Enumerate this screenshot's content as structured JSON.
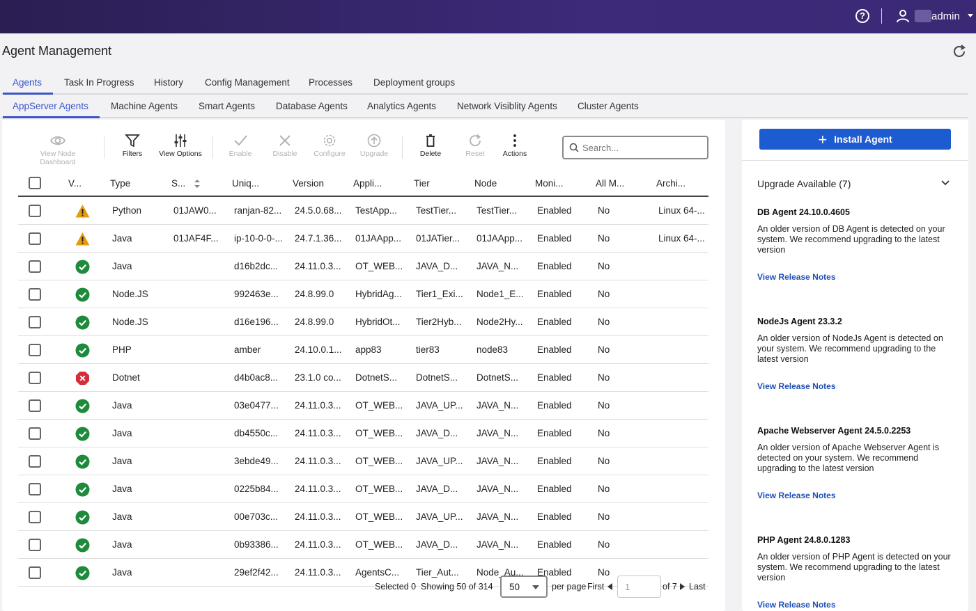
{
  "header": {
    "user_name": "admin",
    "help_icon": "?"
  },
  "page": {
    "title": "Agent Management"
  },
  "tabs": [
    "Agents",
    "Task In Progress",
    "History",
    "Config Management",
    "Processes",
    "Deployment groups"
  ],
  "subtabs": [
    "AppServer Agents",
    "Machine Agents",
    "Smart Agents",
    "Database Agents",
    "Analytics Agents",
    "Network Visiblity Agents",
    "Cluster Agents"
  ],
  "toolbar": {
    "view_node_dashboard": "View Node Dashboard",
    "filters": "Filters",
    "view_options": "View Options",
    "enable": "Enable",
    "disable": "Disable",
    "configure": "Configure",
    "upgrade": "Upgrade",
    "delete": "Delete",
    "reset": "Reset",
    "actions": "Actions"
  },
  "search": {
    "placeholder": "Search..."
  },
  "table": {
    "columns": [
      "V...",
      "Type",
      "S...",
      "Uniq...",
      "Version",
      "Appli...",
      "Tier",
      "Node",
      "Moni...",
      "All M...",
      "Archi..."
    ],
    "rows": [
      {
        "status": "warning",
        "type": "Python",
        "s": "01JAW0...",
        "uniq": "ranjan-82...",
        "version": "24.5.0.68...",
        "app": "TestApp...",
        "tier": "TestTier...",
        "node": "TestTier...",
        "moni": "Enabled",
        "allm": "No",
        "arch": "Linux 64-..."
      },
      {
        "status": "warning",
        "type": "Java",
        "s": "01JAF4F...",
        "uniq": "ip-10-0-0-...",
        "version": "24.7.1.36...",
        "app": "01JAApp...",
        "tier": "01JATier...",
        "node": "01JAApp...",
        "moni": "Enabled",
        "allm": "No",
        "arch": "Linux 64-..."
      },
      {
        "status": "ok",
        "type": "Java",
        "s": "",
        "uniq": "d16b2dc...",
        "version": "24.11.0.3...",
        "app": "OT_WEB...",
        "tier": "JAVA_D...",
        "node": "JAVA_N...",
        "moni": "Enabled",
        "allm": "No",
        "arch": ""
      },
      {
        "status": "ok",
        "type": "Node.JS",
        "s": "",
        "uniq": "992463e...",
        "version": "24.8.99.0",
        "app": "HybridAg...",
        "tier": "Tier1_Exi...",
        "node": "Node1_E...",
        "moni": "Enabled",
        "allm": "No",
        "arch": ""
      },
      {
        "status": "ok",
        "type": "Node.JS",
        "s": "",
        "uniq": "d16e196...",
        "version": "24.8.99.0",
        "app": "HybridOt...",
        "tier": "Tier2Hyb...",
        "node": "Node2Hy...",
        "moni": "Enabled",
        "allm": "No",
        "arch": ""
      },
      {
        "status": "ok",
        "type": "PHP",
        "s": "",
        "uniq": "amber",
        "version": "24.10.0.1...",
        "app": "app83",
        "tier": "tier83",
        "node": "node83",
        "moni": "Enabled",
        "allm": "No",
        "arch": ""
      },
      {
        "status": "error",
        "type": "Dotnet",
        "s": "",
        "uniq": "d4b0ac8...",
        "version": "23.1.0 co...",
        "app": "DotnetS...",
        "tier": "DotnetS...",
        "node": "DotnetS...",
        "moni": "Enabled",
        "allm": "No",
        "arch": ""
      },
      {
        "status": "ok",
        "type": "Java",
        "s": "",
        "uniq": "03e0477...",
        "version": "24.11.0.3...",
        "app": "OT_WEB...",
        "tier": "JAVA_UP...",
        "node": "JAVA_N...",
        "moni": "Enabled",
        "allm": "No",
        "arch": ""
      },
      {
        "status": "ok",
        "type": "Java",
        "s": "",
        "uniq": "db4550c...",
        "version": "24.11.0.3...",
        "app": "OT_WEB...",
        "tier": "JAVA_D...",
        "node": "JAVA_N...",
        "moni": "Enabled",
        "allm": "No",
        "arch": ""
      },
      {
        "status": "ok",
        "type": "Java",
        "s": "",
        "uniq": "3ebde49...",
        "version": "24.11.0.3...",
        "app": "OT_WEB...",
        "tier": "JAVA_UP...",
        "node": "JAVA_N...",
        "moni": "Enabled",
        "allm": "No",
        "arch": ""
      },
      {
        "status": "ok",
        "type": "Java",
        "s": "",
        "uniq": "0225b84...",
        "version": "24.11.0.3...",
        "app": "OT_WEB...",
        "tier": "JAVA_D...",
        "node": "JAVA_N...",
        "moni": "Enabled",
        "allm": "No",
        "arch": ""
      },
      {
        "status": "ok",
        "type": "Java",
        "s": "",
        "uniq": "00e703c...",
        "version": "24.11.0.3...",
        "app": "OT_WEB...",
        "tier": "JAVA_UP...",
        "node": "JAVA_N...",
        "moni": "Enabled",
        "allm": "No",
        "arch": ""
      },
      {
        "status": "ok",
        "type": "Java",
        "s": "",
        "uniq": "0b93386...",
        "version": "24.11.0.3...",
        "app": "OT_WEB...",
        "tier": "JAVA_D...",
        "node": "JAVA_N...",
        "moni": "Enabled",
        "allm": "No",
        "arch": ""
      },
      {
        "status": "ok",
        "type": "Java",
        "s": "",
        "uniq": "29ef2f42...",
        "version": "24.11.0.3...",
        "app": "AgentsC...",
        "tier": "Tier_Aut...",
        "node": "Node_Au...",
        "moni": "Enabled",
        "allm": "No",
        "arch": ""
      }
    ]
  },
  "footer": {
    "selected": "Selected 0",
    "showing": "Showing 50 of 314",
    "per_page_value": "50",
    "per_page_label": "per page",
    "first": "First",
    "page_input": "1",
    "of_pages": "of 7",
    "last": "Last"
  },
  "side": {
    "install_label": "Install Agent",
    "upgrade_title": "Upgrade Available (7)",
    "items": [
      {
        "name": "DB Agent 24.10.0.4605",
        "desc": "An older version of DB Agent is detected on your system. We recommend upgrading to the latest version",
        "link": "View Release Notes"
      },
      {
        "name": "NodeJs Agent 23.3.2",
        "desc": "An older version of NodeJs Agent is detected on your system. We recommend upgrading to the latest version",
        "link": "View Release Notes"
      },
      {
        "name": "Apache Webserver Agent 24.5.0.2253",
        "desc": "An older version of Apache Webserver Agent is detected on your system. We recommend upgrading to the latest version",
        "link": "View Release Notes"
      },
      {
        "name": "PHP Agent 24.8.0.1283",
        "desc": "An older version of PHP Agent is detected on your system. We recommend upgrading to the latest version",
        "link": "View Release Notes"
      }
    ]
  },
  "colors": {
    "brand_header": "#3d2a79",
    "accent": "#3b55c8",
    "install_button": "#1d5bd1",
    "ok": "#1e8a3c",
    "warning": "#e59b0e",
    "error": "#d62d3a"
  }
}
